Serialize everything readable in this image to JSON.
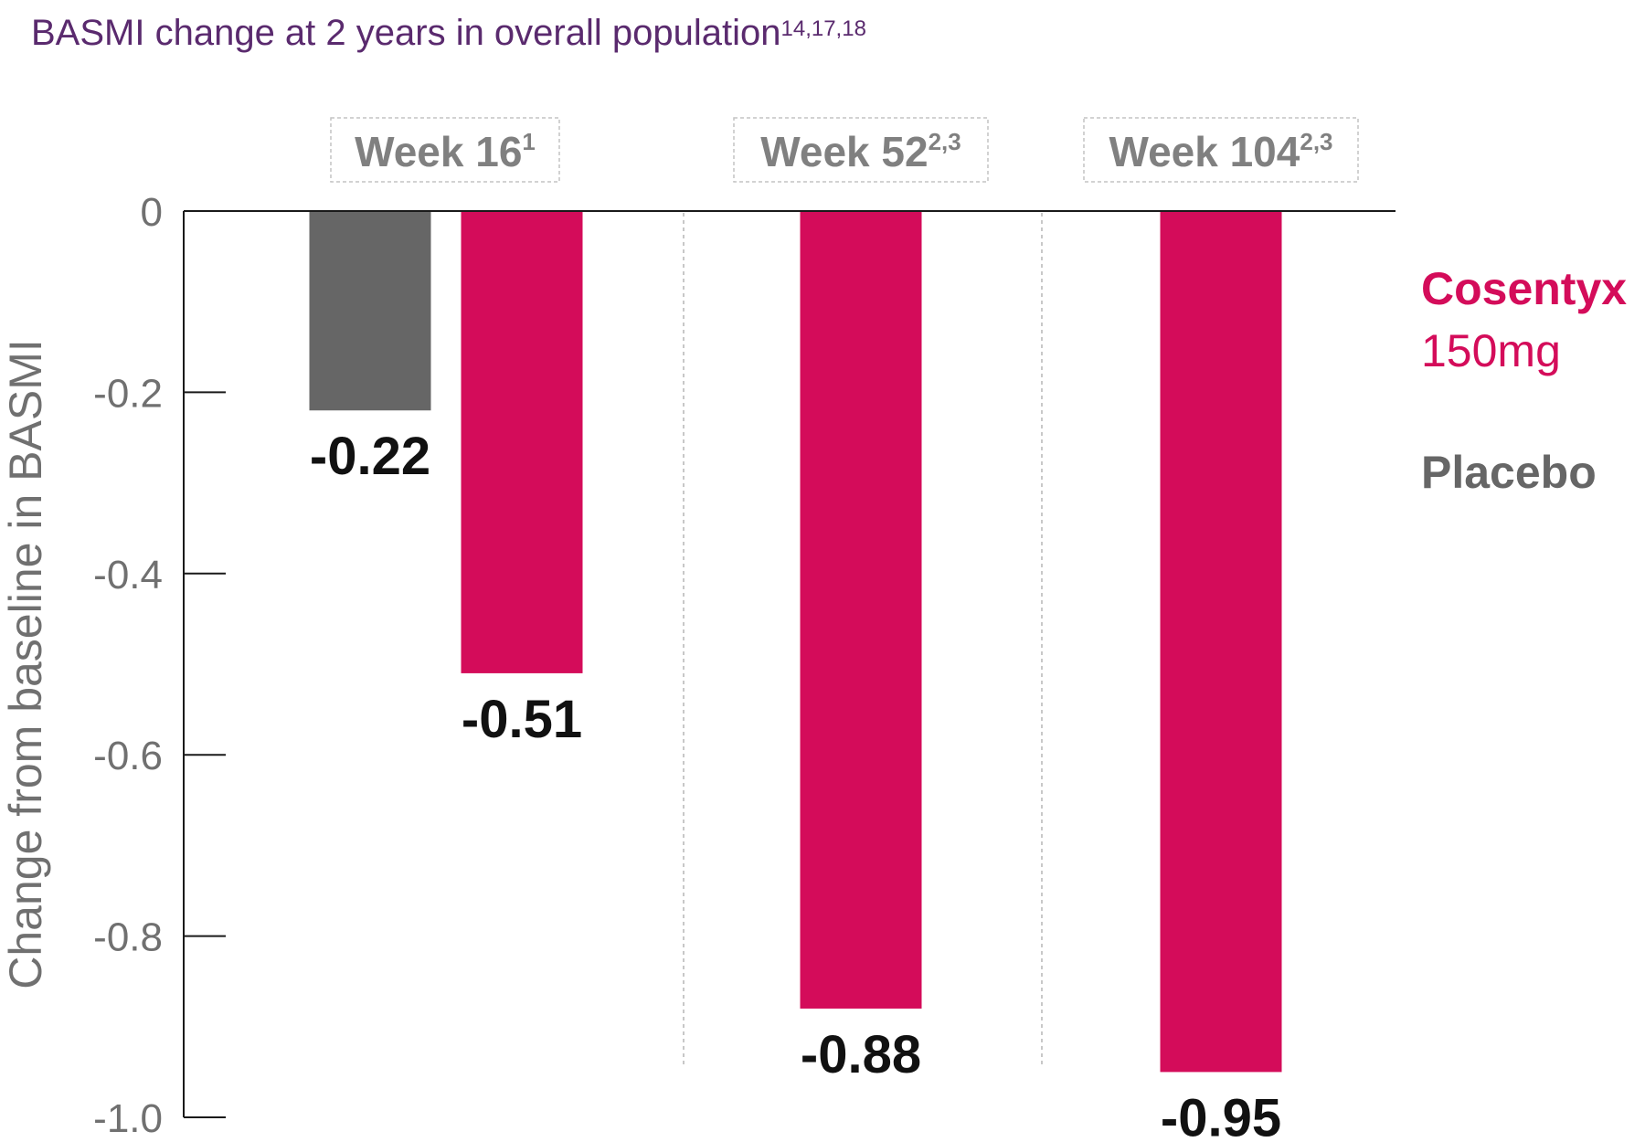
{
  "title": {
    "text": "BASMI change at 2 years in overall population",
    "superscript": "14,17,18"
  },
  "colors": {
    "title": "#5a2a6e",
    "cosentyx": "#d40c5a",
    "placebo": "#666666",
    "group_label": "#808080",
    "axis": "#1a1a1a",
    "tick_label": "#707070",
    "value_label": "#111111"
  },
  "legend": {
    "cosentyx_name": "Cosentyx",
    "cosentyx_dose": "150mg",
    "placebo": "Placebo"
  },
  "chart_data": {
    "type": "bar",
    "title": "BASMI change at 2 years in overall population",
    "ylabel": "Change from baseline in BASMI",
    "xlabel": "",
    "ylim": [
      -1.0,
      0
    ],
    "yticks": [
      0,
      -0.2,
      -0.4,
      -0.6,
      -0.8,
      -1.0
    ],
    "ytick_labels": [
      "0",
      "-0.2",
      "-0.4",
      "-0.6",
      "-0.8",
      "-1.0"
    ],
    "legend_position": "right",
    "categories": [
      {
        "label": "Week 16",
        "superscript": "1"
      },
      {
        "label": "Week 52",
        "superscript": "2,3"
      },
      {
        "label": "Week 104",
        "superscript": "2,3"
      }
    ],
    "series": [
      {
        "name": "Placebo",
        "values": [
          -0.22,
          null,
          null
        ],
        "labels": [
          "-0.22",
          null,
          null
        ]
      },
      {
        "name": "Cosentyx 150mg",
        "values": [
          -0.51,
          -0.88,
          -0.95
        ],
        "labels": [
          "-0.51",
          "-0.88",
          "-0.95"
        ]
      }
    ]
  }
}
